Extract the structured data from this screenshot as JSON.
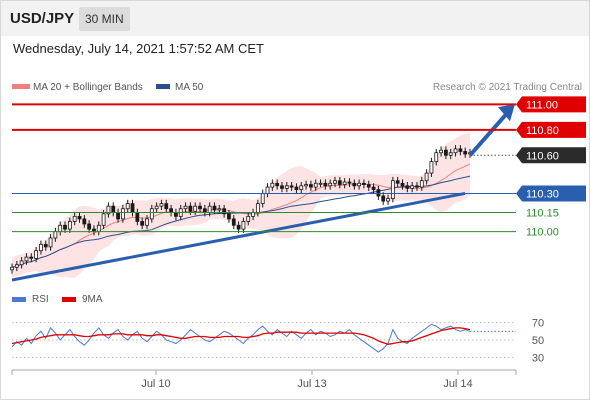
{
  "header": {
    "pair": "USD/JPY",
    "timeframe": "30 MIN"
  },
  "timestamp": "Wednesday, July 14, 2021 1:57:52 AM CET",
  "legend": {
    "bb_label": "MA 20 + Bollinger Bands",
    "ma50_label": "MA 50",
    "copyright": "Research © 2021 Trading Central"
  },
  "rsi_legend": {
    "rsi_label": "RSI",
    "ma_label": "9MA"
  },
  "colors": {
    "resistance": "#e00000",
    "support": "#2a5fb0",
    "support_level": "#2e8b2e",
    "current": "#2b2b2b",
    "arrow": "#2a5fb0",
    "ma20": "#f08080",
    "ma50": "#2a4f8f",
    "candle": "#1a1a1a",
    "band": "#fde0e0"
  },
  "chart_data": [
    {
      "type": "candlestick",
      "title": "USD/JPY",
      "timeframe": "30 MIN",
      "ylim": [
        109.62,
        111.05
      ],
      "x_ticks": [
        "Jul 10",
        "Jul 13",
        "Jul 14"
      ],
      "levels": [
        {
          "label": "111.00",
          "value": 111.0,
          "kind": "resistance"
        },
        {
          "label": "110.80",
          "value": 110.8,
          "kind": "resistance"
        },
        {
          "label": "110.60",
          "value": 110.6,
          "kind": "current"
        },
        {
          "label": "110.30",
          "value": 110.3,
          "kind": "support"
        },
        {
          "label": "110.15",
          "value": 110.15,
          "kind": "support-minor"
        },
        {
          "label": "110.00",
          "value": 110.0,
          "kind": "support-minor"
        }
      ],
      "close": [
        109.72,
        109.74,
        109.77,
        109.8,
        109.79,
        109.85,
        109.9,
        109.88,
        109.95,
        110.0,
        110.05,
        110.02,
        110.08,
        110.12,
        110.1,
        110.06,
        110.02,
        110.0,
        110.05,
        110.14,
        110.2,
        110.15,
        110.1,
        110.18,
        110.22,
        110.15,
        110.08,
        110.05,
        110.1,
        110.18,
        110.2,
        110.22,
        110.18,
        110.15,
        110.12,
        110.18,
        110.2,
        110.16,
        110.2,
        110.18,
        110.15,
        110.2,
        110.17,
        110.18,
        110.14,
        110.1,
        110.05,
        110.02,
        110.08,
        110.12,
        110.15,
        110.22,
        110.3,
        110.35,
        110.38,
        110.36,
        110.34,
        110.36,
        110.35,
        110.33,
        110.36,
        110.37,
        110.35,
        110.38,
        110.38,
        110.36,
        110.38,
        110.4,
        110.37,
        110.39,
        110.38,
        110.36,
        110.38,
        110.37,
        110.35,
        110.33,
        110.28,
        110.24,
        110.26,
        110.4,
        110.38,
        110.36,
        110.34,
        110.36,
        110.35,
        110.4,
        110.46,
        110.55,
        110.62,
        110.64,
        110.6,
        110.62,
        110.65,
        110.63,
        110.61,
        110.62
      ],
      "bands": {
        "upper_end": 110.72,
        "lower_end": 110.22
      },
      "ma20_end": 110.55,
      "ma50_end": 110.38
    },
    {
      "type": "line",
      "title": "RSI",
      "ylim": [
        20,
        80
      ],
      "y_ticks": [
        70,
        50,
        30
      ],
      "series": [
        {
          "name": "RSI",
          "values": [
            42,
            48,
            44,
            52,
            46,
            55,
            60,
            52,
            64,
            58,
            50,
            56,
            62,
            54,
            48,
            44,
            50,
            58,
            64,
            56,
            52,
            58,
            62,
            54,
            50,
            56,
            60,
            52,
            48,
            54,
            60,
            56,
            50,
            48,
            46,
            50,
            56,
            62,
            58,
            54,
            50,
            48,
            52,
            56,
            60,
            58,
            54,
            50,
            46,
            52,
            56,
            62,
            66,
            60,
            56,
            62,
            58,
            54,
            60,
            56,
            52,
            58,
            62,
            56,
            60,
            58,
            54,
            56,
            60,
            58,
            62,
            56,
            52,
            48,
            44,
            40,
            36,
            40,
            46,
            62,
            52,
            48,
            46,
            52,
            56,
            60,
            64,
            68,
            66,
            62,
            64,
            66,
            62,
            60,
            62,
            60
          ]
        },
        {
          "name": "9MA",
          "values": [
            46,
            47,
            48,
            49,
            50,
            51,
            53,
            54,
            55,
            56,
            56,
            56,
            56,
            56,
            55,
            54,
            54,
            55,
            56,
            56,
            56,
            57,
            57,
            57,
            56,
            56,
            56,
            56,
            55,
            55,
            56,
            56,
            55,
            54,
            53,
            52,
            52,
            53,
            54,
            54,
            54,
            53,
            53,
            53,
            54,
            54,
            54,
            54,
            53,
            53,
            54,
            55,
            57,
            58,
            58,
            59,
            59,
            59,
            59,
            59,
            58,
            58,
            58,
            58,
            58,
            58,
            58,
            58,
            58,
            58,
            58,
            58,
            57,
            56,
            54,
            52,
            49,
            47,
            45,
            46,
            47,
            48,
            48,
            49,
            51,
            53,
            55,
            57,
            59,
            61,
            62,
            63,
            64,
            64,
            63,
            62
          ]
        }
      ]
    }
  ]
}
